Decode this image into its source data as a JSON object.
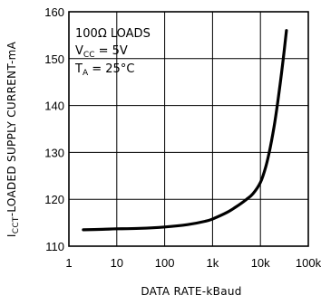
{
  "chart_data": {
    "type": "line",
    "xscale": "log",
    "xlim": [
      1,
      100000
    ],
    "ylim": [
      110,
      160
    ],
    "grid": true,
    "xlabel": "DATA RATE-kBaud",
    "ylabel_main": "I",
    "ylabel_sub": "CCT",
    "ylabel_rest": "-LOADED SUPPLY CURRENT-mA",
    "xticks": [
      {
        "value": 1,
        "label": "1"
      },
      {
        "value": 10,
        "label": "10"
      },
      {
        "value": 100,
        "label": "100"
      },
      {
        "value": 1000,
        "label": "1k"
      },
      {
        "value": 10000,
        "label": "10k"
      },
      {
        "value": 100000,
        "label": "100k"
      }
    ],
    "yticks": [
      {
        "value": 110,
        "label": "110"
      },
      {
        "value": 120,
        "label": "120"
      },
      {
        "value": 130,
        "label": "130"
      },
      {
        "value": 140,
        "label": "140"
      },
      {
        "value": 150,
        "label": "150"
      },
      {
        "value": 160,
        "label": "160"
      }
    ],
    "annotation": {
      "line1": "100Ω LOADS",
      "line2_main": "V",
      "line2_sub": "CC",
      "line2_rest": " = 5V",
      "line3_main": "T",
      "line3_sub": "A",
      "line3_rest": " = 25°C"
    },
    "series": [
      {
        "x": [
          2,
          5,
          10,
          30,
          100,
          300,
          700,
          1000,
          2000,
          3000,
          5000,
          7000,
          10000,
          13000,
          16000,
          20000,
          25000,
          30000,
          35000
        ],
        "y": [
          113.5,
          113.6,
          113.7,
          113.8,
          114.1,
          114.6,
          115.3,
          115.8,
          117.2,
          118.3,
          119.9,
          121.2,
          123.6,
          127.0,
          131.0,
          136.5,
          143.5,
          150.0,
          156.0
        ]
      }
    ]
  }
}
